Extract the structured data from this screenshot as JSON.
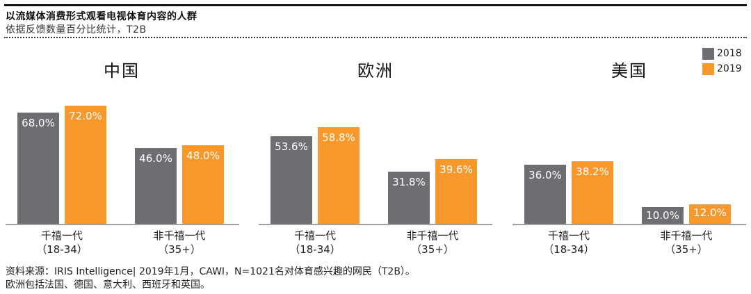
{
  "header": {
    "title": "以流媒体消费形式观看电视体育内容的人群",
    "subtitle": "依据反馈数量百分比统计，T2B"
  },
  "legend": [
    {
      "label": "2018",
      "color": "#6d6e71"
    },
    {
      "label": "2019",
      "color": "#f7982d"
    }
  ],
  "panels": [
    {
      "title": "中国",
      "groups": [
        {
          "line1": "千禧一代",
          "line2": "（18-34）",
          "v2018": "68.0%",
          "v2019": "72.0%"
        },
        {
          "line1": "非千禧一代",
          "line2": "（35+）",
          "v2018": "46.0%",
          "v2019": "48.0%"
        }
      ]
    },
    {
      "title": "欧洲",
      "groups": [
        {
          "line1": "千禧一代",
          "line2": "（18-34）",
          "v2018": "53.6%",
          "v2019": "58.8%"
        },
        {
          "line1": "非千禧一代",
          "line2": "（35+）",
          "v2018": "31.8%",
          "v2019": "39.6%"
        }
      ]
    },
    {
      "title": "美国",
      "groups": [
        {
          "line1": "千禧一代",
          "line2": "（18-34）",
          "v2018": "36.0%",
          "v2019": "38.2%"
        },
        {
          "line1": "非千禧一代",
          "line2": "（35+）",
          "v2018": "10.0%",
          "v2019": "12.0%"
        }
      ]
    }
  ],
  "footnote": {
    "line1": "资料来源：IRIS Intelligence| 2019年1月，CAWI，N=1021名对体育感兴趣的网民（T2B）。",
    "line2": "欧洲包括法国、德国、意大利、西班牙和英国。"
  },
  "chart_data": [
    {
      "type": "bar",
      "title": "中国",
      "categories": [
        "千禧一代（18-34）",
        "非千禧一代（35+）"
      ],
      "series": [
        {
          "name": "2018",
          "values": [
            68.0,
            46.0
          ]
        },
        {
          "name": "2019",
          "values": [
            72.0,
            48.0
          ]
        }
      ],
      "xlabel": "",
      "ylabel": "%",
      "ylim": [
        0,
        80
      ]
    },
    {
      "type": "bar",
      "title": "欧洲",
      "categories": [
        "千禧一代（18-34）",
        "非千禧一代（35+）"
      ],
      "series": [
        {
          "name": "2018",
          "values": [
            53.6,
            31.8
          ]
        },
        {
          "name": "2019",
          "values": [
            58.8,
            39.6
          ]
        }
      ],
      "xlabel": "",
      "ylabel": "%",
      "ylim": [
        0,
        80
      ]
    },
    {
      "type": "bar",
      "title": "美国",
      "categories": [
        "千禧一代（18-34）",
        "非千禧一代（35+）"
      ],
      "series": [
        {
          "name": "2018",
          "values": [
            36.0,
            10.0
          ]
        },
        {
          "name": "2019",
          "values": [
            38.2,
            12.0
          ]
        }
      ],
      "xlabel": "",
      "ylabel": "%",
      "ylim": [
        0,
        80
      ]
    }
  ]
}
